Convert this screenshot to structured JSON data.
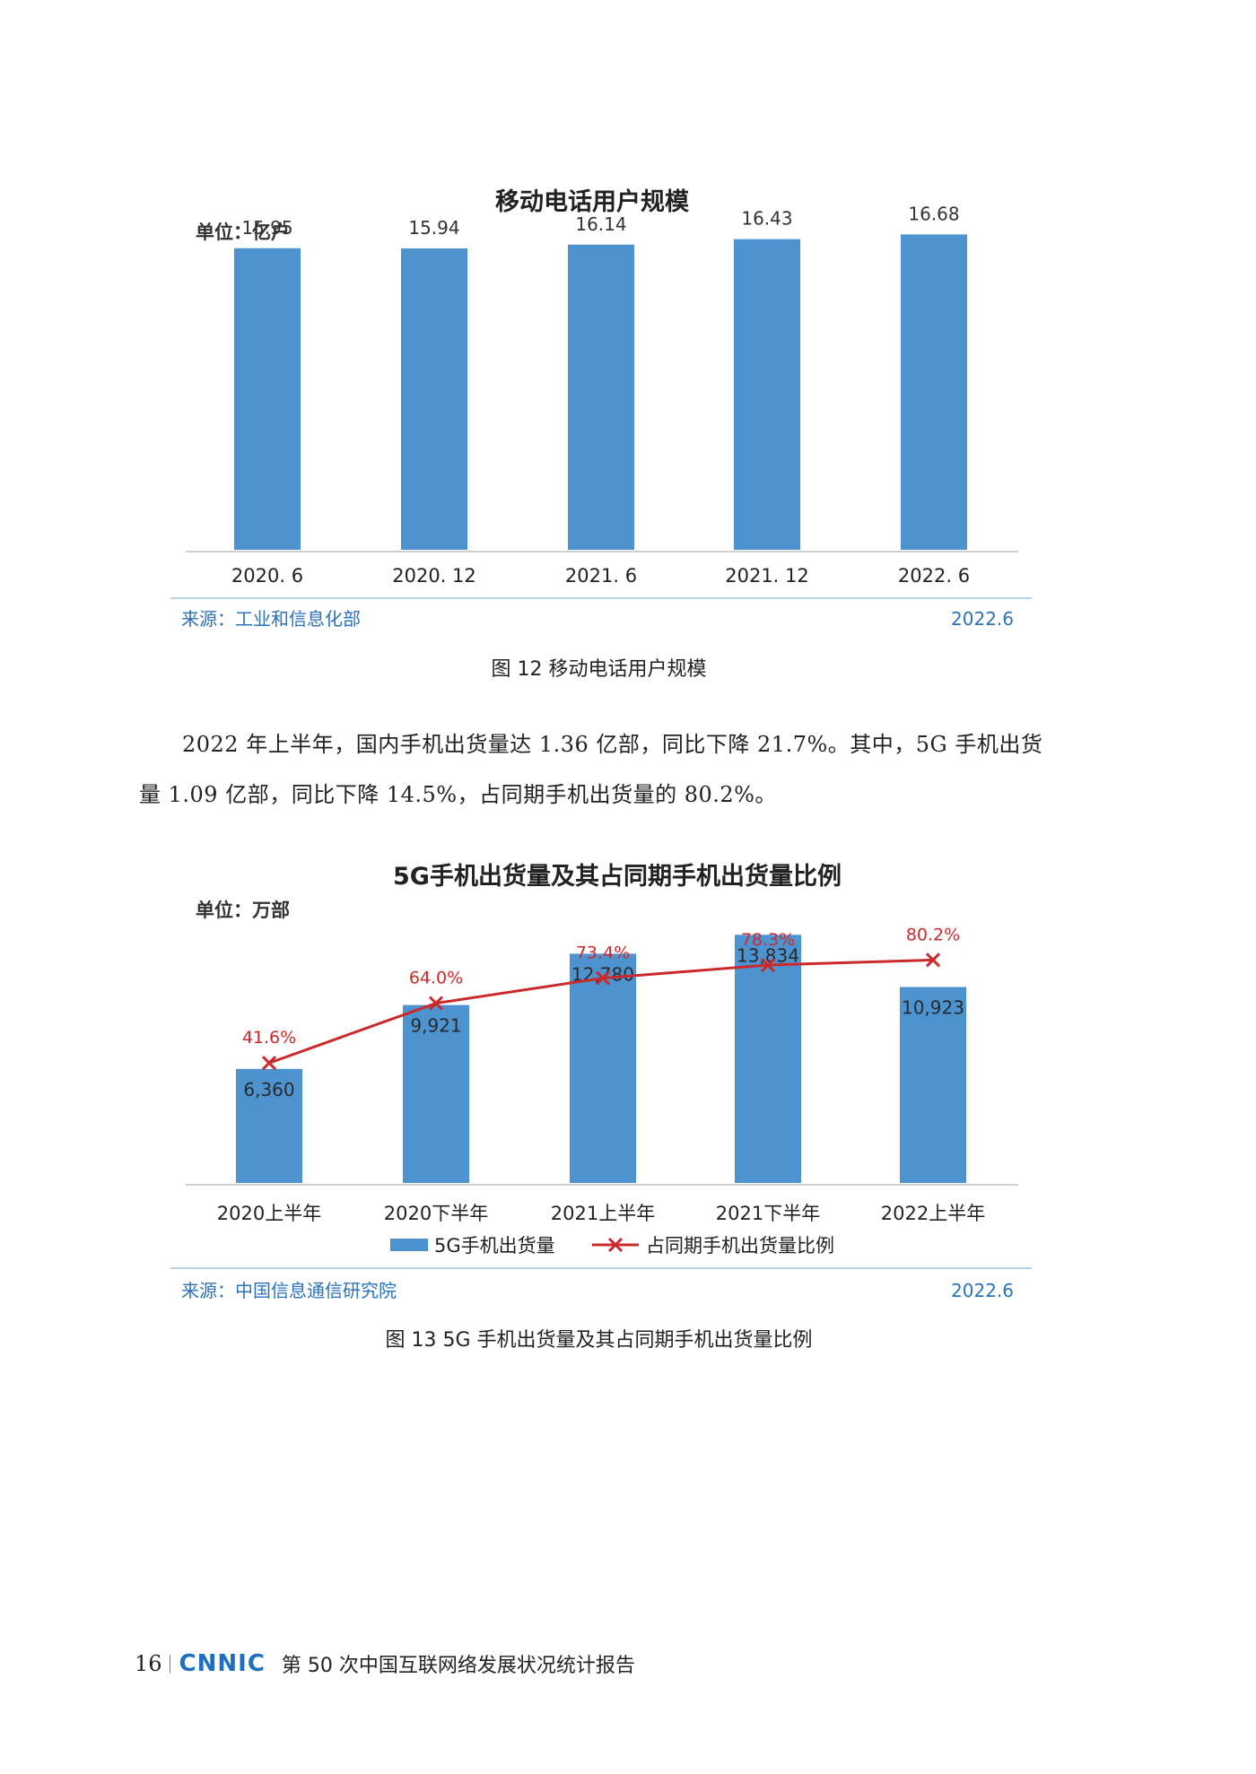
{
  "chart_data": [
    {
      "type": "bar",
      "title": "移动电话用户规模",
      "unit": "单位：亿户",
      "categories": [
        "2020. 6",
        "2020. 12",
        "2021. 6",
        "2021. 12",
        "2022. 6"
      ],
      "values": [
        15.95,
        15.94,
        16.14,
        16.43,
        16.68
      ],
      "value_labels": [
        "15.95",
        "15.94",
        "16.14",
        "16.43",
        "16.68"
      ],
      "ylim": [
        0,
        18.5
      ],
      "grid": false,
      "bar_color": "#4d93cf",
      "source": "来源：工业和信息化部",
      "date": "2022.6"
    },
    {
      "type": "bar",
      "title": "5G手机出货量及其占同期手机出货量比例",
      "unit": "单位：万部",
      "categories": [
        "2020上半年",
        "2020下半年",
        "2021上半年",
        "2021下半年",
        "2022上半年"
      ],
      "series": [
        {
          "name": "5G手机出货量",
          "type": "bar",
          "values": [
            6360,
            9921,
            12780,
            13834,
            10923
          ],
          "labels": [
            "6,360",
            "9,921",
            "12,780",
            "13,834",
            "10,923"
          ],
          "color": "#4d93cf"
        },
        {
          "name": "占同期手机出货量比例",
          "type": "line",
          "values": [
            41.6,
            64.0,
            73.4,
            78.3,
            80.2
          ],
          "labels": [
            "41.6%",
            "64.0%",
            "73.4%",
            "78.3%",
            "80.2%"
          ],
          "color": "#cc2a2a"
        }
      ],
      "ylim": [
        0,
        16500
      ],
      "y2lim": [
        0,
        100
      ],
      "grid": false,
      "legend": "bottom",
      "source": "来源：中国信息通信研究院",
      "date": "2022.6"
    }
  ],
  "captions": {
    "fig12": "图 12  移动电话用户规模",
    "fig13": "图 13  5G 手机出货量及其占同期手机出货量比例"
  },
  "body_text": "2022 年上半年，国内手机出货量达 1.36 亿部，同比下降 21.7%。其中，5G 手机出货量 1.09 亿部，同比下降 14.5%，占同期手机出货量的 80.2%。",
  "footer": {
    "page_number": "16",
    "logo": "CNNIC",
    "report_title": "第 50 次中国互联网络发展状况统计报告"
  }
}
